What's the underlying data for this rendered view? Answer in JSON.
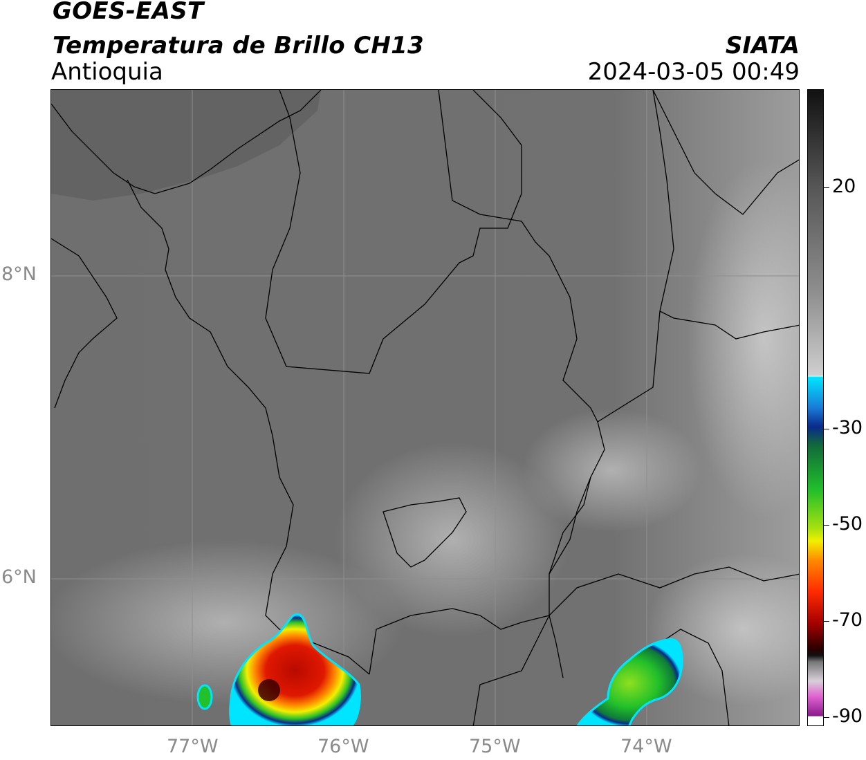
{
  "header": {
    "satellite": "GOES-EAST",
    "product": "Temperatura de Brillo CH13",
    "region": "Antioquia",
    "organization": "SIATA",
    "timestamp": "2024-03-05 00:49"
  },
  "map": {
    "lat_labels": [
      "8°N",
      "6°N"
    ],
    "lon_labels": [
      "77°W",
      "76°W",
      "75°W",
      "74°W"
    ],
    "colors": {
      "background_gray": "#6e6e6e",
      "border_line": "#000000",
      "grid_line": "#9a9a9a"
    }
  },
  "colorbar": {
    "ticks": [
      "20",
      "-30",
      "-50",
      "-70",
      "-90"
    ],
    "colors": {
      "cyan": "#00e5ff",
      "blue": "#0a2a8a",
      "green": "#22c02a",
      "yellow": "#f2ef00",
      "orange": "#ff8a00",
      "red": "#e01000",
      "dark_red": "#5a0000",
      "magenta": "#e060d0",
      "purple": "#8a1a8a"
    }
  }
}
